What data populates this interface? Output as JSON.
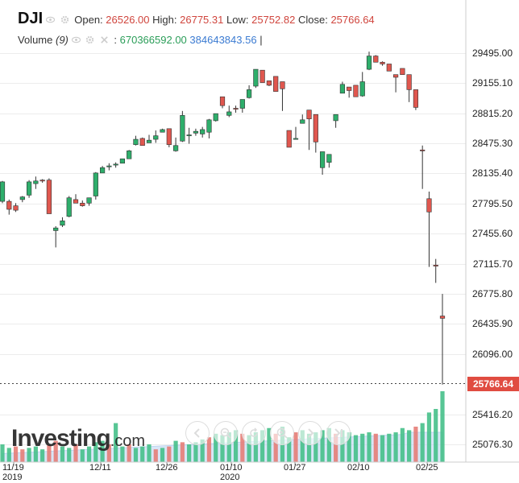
{
  "header": {
    "symbol": "DJI",
    "open_label": "Open:",
    "open": "26526.00",
    "high_label": "High:",
    "high": "26775.31",
    "low_label": "Low:",
    "low": "25752.82",
    "close_label": "Close:",
    "close": "25766.64",
    "volume_label": "Volume",
    "volume_period": "(9)",
    "volume_value": "670366592.00",
    "volume_ma": "384643843.56",
    "volume_sep": ":",
    "volume_tail": "|"
  },
  "logo": {
    "brand": "Investing",
    "suffix": ".com"
  },
  "colors": {
    "up": "#26a65b",
    "down": "#d9534f",
    "up_fill": "#2eae6b",
    "down_fill": "#e0574f",
    "volume_area": "#b9d3f1",
    "price_tag": "#e04c41"
  },
  "chart_data": {
    "type": "candlestick",
    "ylim": [
      24906,
      29665
    ],
    "y_ticks": [
      "29495.00",
      "29155.10",
      "28815.20",
      "28475.30",
      "28135.40",
      "27795.50",
      "27455.60",
      "27115.70",
      "26775.80",
      "26435.90",
      "26096.00",
      "25766.64",
      "25416.20",
      "25076.30"
    ],
    "x_ticks": [
      {
        "label": "11/19",
        "sub": "2019"
      },
      {
        "label": "12/11",
        "sub": ""
      },
      {
        "label": "12/26",
        "sub": ""
      },
      {
        "label": "01/10",
        "sub": "2020"
      },
      {
        "label": "01/27",
        "sub": ""
      },
      {
        "label": "02/10",
        "sub": ""
      },
      {
        "label": "02/25",
        "sub": ""
      }
    ],
    "last_close": "25766.64",
    "candles": [
      [
        28040,
        28050,
        27820,
        27800,
        27850,
        1
      ],
      [
        27820,
        27840,
        27730,
        27670,
        27760,
        0
      ],
      [
        27770,
        27800,
        27720,
        27700,
        27690,
        0
      ],
      [
        27840,
        27880,
        27870,
        27810,
        27870,
        1
      ],
      [
        27890,
        28060,
        28040,
        27860,
        27890,
        1
      ],
      [
        28020,
        28090,
        28050,
        27960,
        28100,
        1
      ],
      [
        28060,
        28070,
        28050,
        28030,
        28050,
        0
      ],
      [
        28060,
        28080,
        27680,
        27680,
        27660,
        0
      ],
      [
        27490,
        27540,
        27520,
        27300,
        27530,
        1
      ],
      [
        27550,
        27640,
        27600,
        27530,
        27520,
        1
      ],
      [
        27650,
        27880,
        27860,
        27640,
        27860,
        1
      ],
      [
        27840,
        27900,
        27800,
        27820,
        27800,
        0
      ],
      [
        27800,
        27830,
        27770,
        27760,
        27740,
        0
      ],
      [
        27800,
        27840,
        27860,
        27770,
        27780,
        1
      ],
      [
        27880,
        28140,
        28140,
        27840,
        28150,
        1
      ],
      [
        28140,
        28170,
        28200,
        28140,
        28220,
        1
      ],
      [
        28210,
        28250,
        28220,
        28170,
        28250,
        1
      ],
      [
        28230,
        28260,
        28240,
        28200,
        28230,
        1
      ],
      [
        28250,
        28290,
        28300,
        28250,
        28290,
        1
      ],
      [
        28300,
        28400,
        28390,
        28300,
        28400,
        1
      ],
      [
        28460,
        28550,
        28520,
        28450,
        28560,
        1
      ],
      [
        28530,
        28540,
        28450,
        28450,
        28540,
        0
      ],
      [
        28480,
        28570,
        28510,
        28480,
        28560,
        1
      ],
      [
        28520,
        28620,
        28560,
        28480,
        28610,
        1
      ],
      [
        28600,
        28630,
        28630,
        28600,
        28640,
        1
      ],
      [
        28640,
        28630,
        28460,
        28430,
        28470,
        0
      ],
      [
        28390,
        28540,
        28450,
        28380,
        28540,
        1
      ],
      [
        28500,
        28840,
        28790,
        28490,
        28810,
        1
      ],
      [
        28560,
        28650,
        28570,
        28470,
        28520,
        1
      ],
      [
        28590,
        28640,
        28610,
        28560,
        28540,
        1
      ],
      [
        28580,
        28620,
        28630,
        28540,
        28660,
        1
      ],
      [
        28600,
        28750,
        28740,
        28530,
        28740,
        1
      ],
      [
        28730,
        28770,
        28810,
        28720,
        28760,
        1
      ],
      [
        28900,
        28960,
        29000,
        28870,
        28920,
        0
      ],
      [
        28790,
        28900,
        28830,
        28770,
        28820,
        1
      ],
      [
        28870,
        28900,
        28860,
        28820,
        28870,
        0
      ],
      [
        28870,
        28950,
        28970,
        28820,
        28960,
        1
      ],
      [
        28990,
        29130,
        29080,
        28980,
        29100,
        1
      ],
      [
        29120,
        29160,
        29310,
        29100,
        29290,
        1
      ],
      [
        29300,
        29200,
        29160,
        29200,
        29230,
        0
      ],
      [
        29130,
        29130,
        29180,
        29120,
        29130,
        0
      ],
      [
        29230,
        29160,
        29060,
        29160,
        29120,
        0
      ],
      [
        29170,
        29170,
        29090,
        28840,
        29090,
        0
      ],
      [
        28620,
        28480,
        28430,
        28460,
        28450,
        0
      ],
      [
        28530,
        28650,
        28520,
        28540,
        28660,
        1
      ],
      [
        28700,
        28780,
        28740,
        28700,
        28800,
        1
      ],
      [
        28850,
        28800,
        28750,
        28400,
        28800,
        0
      ],
      [
        28800,
        28560,
        28490,
        28370,
        28490,
        0
      ],
      [
        28380,
        28150,
        28200,
        28120,
        28200,
        1
      ],
      [
        28350,
        28230,
        28260,
        28200,
        28350,
        1
      ],
      [
        28800,
        28690,
        28730,
        28650,
        28760,
        1
      ],
      [
        29040,
        29170,
        29140,
        29040,
        29160,
        1
      ],
      [
        29070,
        29090,
        29110,
        28990,
        29090,
        0
      ],
      [
        29130,
        29000,
        29000,
        29020,
        29020,
        0
      ],
      [
        29010,
        29240,
        29170,
        29000,
        29280,
        1
      ],
      [
        29310,
        29480,
        29460,
        29300,
        29510,
        1
      ],
      [
        29460,
        29400,
        29390,
        29400,
        29470,
        0
      ],
      [
        29370,
        29400,
        29390,
        29350,
        29360,
        0
      ],
      [
        29370,
        29300,
        29290,
        29310,
        29320,
        0
      ],
      [
        29250,
        29230,
        29220,
        29050,
        29240,
        0
      ],
      [
        29320,
        29260,
        29250,
        29270,
        29240,
        0
      ],
      [
        29250,
        29080,
        29080,
        28940,
        29160,
        0
      ],
      [
        29080,
        28890,
        28880,
        28850,
        28970,
        0
      ],
      [
        28390,
        28450,
        28400,
        27960,
        27960,
        0
      ],
      [
        27850,
        27930,
        27700,
        27080,
        27080,
        0
      ],
      [
        27100,
        27170,
        27100,
        26900,
        26880,
        0
      ],
      [
        26500,
        26775,
        26526,
        25752,
        25766,
        0
      ]
    ],
    "volumes": [
      [
        0.25,
        1
      ],
      [
        0.2,
        1
      ],
      [
        0.22,
        0
      ],
      [
        0.18,
        0
      ],
      [
        0.2,
        1
      ],
      [
        0.22,
        1
      ],
      [
        0.18,
        1
      ],
      [
        0.24,
        0
      ],
      [
        0.3,
        0
      ],
      [
        0.22,
        1
      ],
      [
        0.2,
        1
      ],
      [
        0.25,
        0
      ],
      [
        0.18,
        1
      ],
      [
        0.22,
        1
      ],
      [
        0.28,
        1
      ],
      [
        0.3,
        1
      ],
      [
        0.25,
        0
      ],
      [
        0.55,
        1
      ],
      [
        0.22,
        1
      ],
      [
        0.25,
        0
      ],
      [
        0.2,
        1
      ],
      [
        0.22,
        1
      ],
      [
        0.25,
        1
      ],
      [
        0.18,
        0
      ],
      [
        0.2,
        1
      ],
      [
        0.22,
        0
      ],
      [
        0.3,
        1
      ],
      [
        0.28,
        0
      ],
      [
        0.25,
        1
      ],
      [
        0.28,
        1
      ],
      [
        0.32,
        1
      ],
      [
        0.35,
        0
      ],
      [
        0.4,
        1
      ],
      [
        0.38,
        1
      ],
      [
        0.42,
        1
      ],
      [
        0.45,
        1
      ],
      [
        0.4,
        0
      ],
      [
        0.38,
        1
      ],
      [
        0.42,
        1
      ],
      [
        0.45,
        1
      ],
      [
        0.48,
        1
      ],
      [
        0.4,
        0
      ],
      [
        0.5,
        1
      ],
      [
        0.35,
        1
      ],
      [
        0.42,
        0
      ],
      [
        0.45,
        1
      ],
      [
        0.4,
        1
      ],
      [
        0.42,
        1
      ],
      [
        0.45,
        1
      ],
      [
        0.48,
        1
      ],
      [
        0.4,
        0
      ],
      [
        0.45,
        1
      ],
      [
        0.42,
        1
      ],
      [
        0.38,
        1
      ],
      [
        0.4,
        1
      ],
      [
        0.42,
        1
      ],
      [
        0.4,
        0
      ],
      [
        0.38,
        1
      ],
      [
        0.4,
        1
      ],
      [
        0.42,
        1
      ],
      [
        0.48,
        1
      ],
      [
        0.45,
        1
      ],
      [
        0.5,
        0
      ],
      [
        0.55,
        1
      ],
      [
        0.7,
        1
      ],
      [
        0.75,
        1
      ],
      [
        1.0,
        1
      ]
    ]
  }
}
